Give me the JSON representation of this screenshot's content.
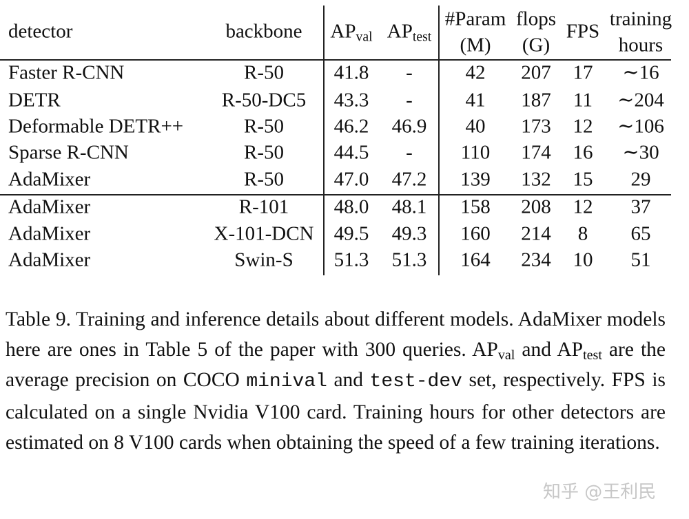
{
  "table": {
    "headers": {
      "detector": "detector",
      "backbone": "backbone",
      "ap_val_base": "AP",
      "ap_val_sub": "val",
      "ap_test_base": "AP",
      "ap_test_sub": "test",
      "param_top": "#Param",
      "param_bottom": "(M)",
      "flops_top": "flops",
      "flops_bottom": "(G)",
      "fps": "FPS",
      "hours_top": "training",
      "hours_bottom": "hours"
    },
    "rows": [
      {
        "detector": "Faster R-CNN",
        "backbone": "R-50",
        "ap_val": "41.8",
        "ap_test": "-",
        "param": "42",
        "flops": "207",
        "fps": "17",
        "hours": "∼16"
      },
      {
        "detector": "DETR",
        "backbone": "R-50-DC5",
        "ap_val": "43.3",
        "ap_test": "-",
        "param": "41",
        "flops": "187",
        "fps": "11",
        "hours": "∼204"
      },
      {
        "detector": "Deformable DETR++",
        "backbone": "R-50",
        "ap_val": "46.2",
        "ap_test": "46.9",
        "param": "40",
        "flops": "173",
        "fps": "12",
        "hours": "∼106"
      },
      {
        "detector": "Sparse R-CNN",
        "backbone": "R-50",
        "ap_val": "44.5",
        "ap_test": "-",
        "param": "110",
        "flops": "174",
        "fps": "16",
        "hours": "∼30"
      },
      {
        "detector": "AdaMixer",
        "backbone": "R-50",
        "ap_val": "47.0",
        "ap_test": "47.2",
        "param": "139",
        "flops": "132",
        "fps": "15",
        "hours": "29"
      },
      {
        "detector": "AdaMixer",
        "backbone": "R-101",
        "ap_val": "48.0",
        "ap_test": "48.1",
        "param": "158",
        "flops": "208",
        "fps": "12",
        "hours": "37"
      },
      {
        "detector": "AdaMixer",
        "backbone": "X-101-DCN",
        "ap_val": "49.5",
        "ap_test": "49.3",
        "param": "160",
        "flops": "214",
        "fps": "8",
        "hours": "65"
      },
      {
        "detector": "AdaMixer",
        "backbone": "Swin-S",
        "ap_val": "51.3",
        "ap_test": "51.3",
        "param": "164",
        "flops": "234",
        "fps": "10",
        "hours": "51"
      }
    ]
  },
  "caption": {
    "s1": "Table 9.  Training and inference details about different models. AdaMixer models here are ones in Table 5 of the paper with 300 queries.  ",
    "ap": "AP",
    "val": "val",
    "and": " and ",
    "test": "test",
    "s2": " are the average precision on COCO ",
    "minival": "minival",
    "and2": " and ",
    "testdev": "test-dev",
    "s3": " set, respectively.  FPS is calculated on a single Nvidia V100 card.  Training hours for other detectors are estimated on 8 V100 cards when obtaining the speed of a few training iterations."
  },
  "watermark": "知乎 @王利民"
}
